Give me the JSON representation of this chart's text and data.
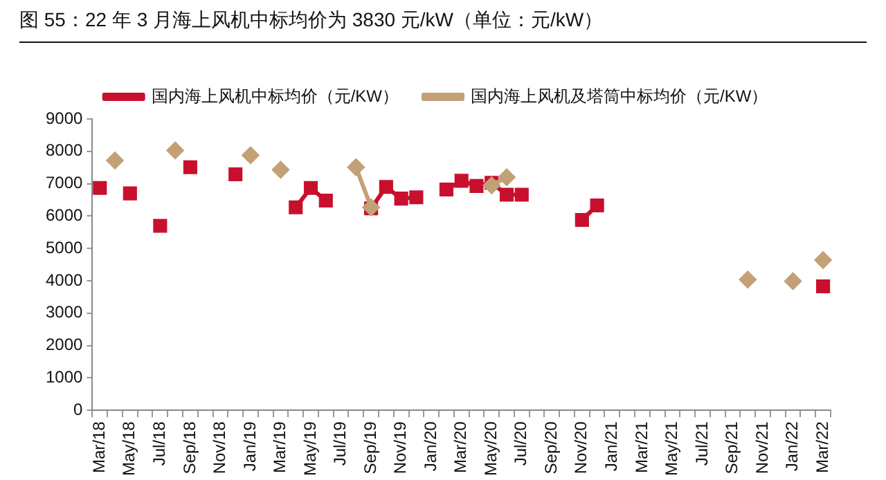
{
  "chart_data": {
    "type": "line",
    "title": "图 55：22 年 3 月海上风机中标均价为 3830 元/kW（单位：元/kW）",
    "categories": [
      "Mar/18",
      null,
      "May/18",
      null,
      "Jul/18",
      null,
      "Sep/18",
      null,
      "Nov/18",
      null,
      "Jan/19",
      null,
      "Mar/19",
      null,
      "May/19",
      null,
      "Jul/19",
      null,
      "Sep/19",
      null,
      "Nov/19",
      null,
      "Jan/20",
      null,
      "Mar/20",
      null,
      "May/20",
      null,
      "Jul/20",
      null,
      "Sep/20",
      null,
      "Nov/20",
      null,
      "Jan/21",
      null,
      "Mar/21",
      null,
      "May/21",
      null,
      "Jul/21",
      null,
      "Sep/21",
      null,
      "Nov/21",
      null,
      "Jan/22",
      null,
      "Mar/22"
    ],
    "series": [
      {
        "name": "国内海上风机中标均价（元/KW）",
        "color": "#c8102e",
        "marker": "square",
        "values": [
          6870,
          null,
          6700,
          null,
          5700,
          null,
          7510,
          null,
          null,
          7290,
          null,
          null,
          null,
          6270,
          6870,
          6480,
          null,
          null,
          6240,
          6900,
          6540,
          6580,
          null,
          6820,
          7090,
          6930,
          7030,
          6660,
          6660,
          null,
          null,
          null,
          5880,
          6330,
          null,
          null,
          null,
          null,
          null,
          null,
          null,
          null,
          null,
          null,
          null,
          null,
          null,
          null,
          3830
        ]
      },
      {
        "name": "国内海上风机及塔筒中标均价（元/KW）",
        "color": "#c4a077",
        "marker": "diamond",
        "values": [
          null,
          7720,
          null,
          null,
          null,
          8030,
          null,
          null,
          null,
          null,
          7880,
          null,
          7430,
          null,
          null,
          null,
          null,
          7510,
          6270,
          null,
          null,
          null,
          null,
          null,
          null,
          null,
          6950,
          7200,
          null,
          null,
          null,
          null,
          null,
          null,
          null,
          null,
          null,
          null,
          null,
          null,
          null,
          null,
          null,
          4040,
          null,
          null,
          3990,
          null,
          4640
        ]
      }
    ],
    "ylim": [
      0,
      9000
    ],
    "yticks": [
      0,
      1000,
      2000,
      3000,
      4000,
      5000,
      6000,
      7000,
      8000,
      9000
    ],
    "grid": false,
    "legend": "top"
  }
}
